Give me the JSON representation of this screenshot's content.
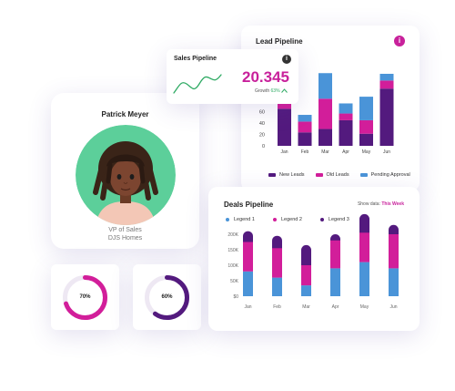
{
  "colors": {
    "purple": "#531a7e",
    "magenta": "#d21e9a",
    "blue": "#4a94d8",
    "green": "#2eaa63"
  },
  "lead_pipeline": {
    "title": "Lead Pipeline",
    "info_icon": "i",
    "legend": [
      "New Leads",
      "Old Leads",
      "Pending Approval"
    ],
    "chart_data": {
      "type": "bar",
      "categories": [
        "Jan",
        "Feb",
        "Mar",
        "Apr",
        "May",
        "Jun"
      ],
      "y_ticks": [
        "0",
        "20",
        "40",
        "60"
      ],
      "ylim": [
        0,
        130
      ],
      "series": [
        {
          "name": "New Leads",
          "values": [
            55,
            20,
            25,
            38,
            18,
            85
          ]
        },
        {
          "name": "Old Leads",
          "values": [
            10,
            16,
            45,
            10,
            20,
            12
          ]
        },
        {
          "name": "Pending Approval",
          "values": [
            30,
            10,
            38,
            15,
            35,
            10
          ]
        }
      ]
    }
  },
  "sales_pipeline": {
    "title": "Sales Pipeline",
    "info_icon": "i",
    "value": "20.345",
    "growth_label": "Growth",
    "growth_value": "63%"
  },
  "profile": {
    "name": "Patrick Meyer",
    "role": "VP of Sales",
    "company": "DJS Homes"
  },
  "donuts": [
    {
      "label": "70%",
      "value": 0.7,
      "color": "#d21e9a"
    },
    {
      "label": "60%",
      "value": 0.6,
      "color": "#531a7e"
    }
  ],
  "deals_pipeline": {
    "title": "Deals Pipeline",
    "show_label": "Show data:",
    "show_value": "This Week",
    "legend": [
      "Legend 1",
      "Legend 2",
      "Legend 3"
    ],
    "chart_data": {
      "type": "bar",
      "categories": [
        "Jan",
        "Feb",
        "Mar",
        "Apr",
        "May",
        "Jun"
      ],
      "y_ticks": [
        "$0",
        "50K",
        "100K",
        "150K",
        "200K"
      ],
      "ylim": [
        0,
        200
      ],
      "series": [
        {
          "name": "Legend 1",
          "values": [
            80,
            60,
            35,
            90,
            110,
            90
          ]
        },
        {
          "name": "Legend 2",
          "values": [
            95,
            95,
            65,
            90,
            95,
            110
          ]
        },
        {
          "name": "Legend 3",
          "values": [
            35,
            40,
            65,
            20,
            60,
            30
          ]
        }
      ]
    }
  }
}
